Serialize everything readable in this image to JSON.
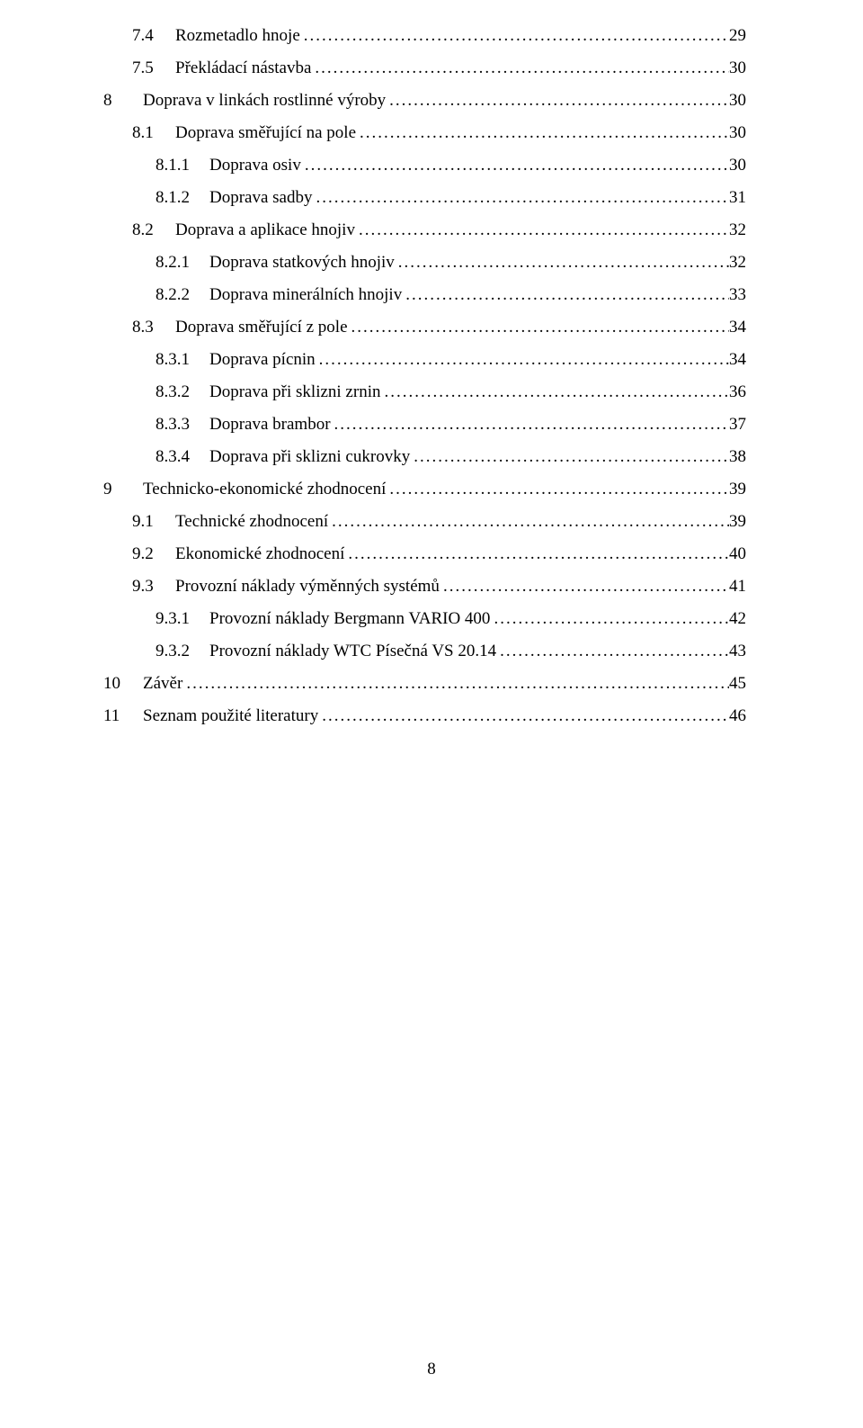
{
  "toc": [
    {
      "level": 2,
      "num": "7.4",
      "label": "Rozmetadlo hnoje",
      "page": "29"
    },
    {
      "level": 2,
      "num": "7.5",
      "label": "Překládací nástavba",
      "page": "30"
    },
    {
      "level": 1,
      "num": "8",
      "label": "Doprava v linkách rostlinné výroby",
      "page": "30"
    },
    {
      "level": 2,
      "num": "8.1",
      "label": "Doprava směřující na pole",
      "page": "30"
    },
    {
      "level": 3,
      "num": "8.1.1",
      "label": "Doprava osiv",
      "page": "30"
    },
    {
      "level": 3,
      "num": "8.1.2",
      "label": "Doprava sadby",
      "page": "31"
    },
    {
      "level": 2,
      "num": "8.2",
      "label": "Doprava a aplikace hnojiv",
      "page": "32"
    },
    {
      "level": 3,
      "num": "8.2.1",
      "label": "Doprava statkových hnojiv",
      "page": "32"
    },
    {
      "level": 3,
      "num": "8.2.2",
      "label": "Doprava minerálních hnojiv",
      "page": "33"
    },
    {
      "level": 2,
      "num": "8.3",
      "label": "Doprava směřující z pole",
      "page": "34"
    },
    {
      "level": 3,
      "num": "8.3.1",
      "label": "Doprava pícnin",
      "page": "34"
    },
    {
      "level": 3,
      "num": "8.3.2",
      "label": "Doprava při sklizni zrnin",
      "page": "36"
    },
    {
      "level": 3,
      "num": "8.3.3",
      "label": "Doprava brambor",
      "page": "37"
    },
    {
      "level": 3,
      "num": "8.3.4",
      "label": "Doprava při sklizni cukrovky",
      "page": "38"
    },
    {
      "level": 1,
      "num": "9",
      "label": "Technicko-ekonomické zhodnocení",
      "page": "39"
    },
    {
      "level": 2,
      "num": "9.1",
      "label": "Technické zhodnocení",
      "page": "39"
    },
    {
      "level": 2,
      "num": "9.2",
      "label": "Ekonomické zhodnocení",
      "page": "40"
    },
    {
      "level": 2,
      "num": "9.3",
      "label": "Provozní náklady výměnných systémů",
      "page": "41"
    },
    {
      "level": 3,
      "num": "9.3.1",
      "label": "Provozní náklady Bergmann VARIO 400",
      "page": "42"
    },
    {
      "level": 3,
      "num": "9.3.2",
      "label": "Provozní náklady WTC Písečná VS 20.14",
      "page": "43"
    },
    {
      "level": 1,
      "num": "10",
      "label": "Závěr",
      "page": "45"
    },
    {
      "level": 1,
      "num": "11",
      "label": "Seznam použité literatury",
      "page": "46"
    }
  ],
  "footer_page": "8"
}
